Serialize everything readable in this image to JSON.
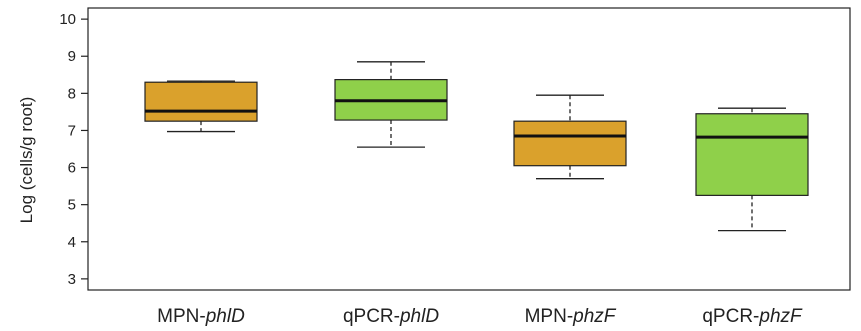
{
  "chart_data": {
    "type": "box",
    "title": "",
    "xlabel": "",
    "ylabel": "Log (cells/g root)",
    "ylim": [
      2.7,
      10.3
    ],
    "yticks": [
      "3",
      "4",
      "5",
      "6",
      "7",
      "8",
      "9",
      "10"
    ],
    "grid": false,
    "categories": [
      {
        "prefix": "MPN-",
        "gene": "phlD",
        "color": "#DAA12C"
      },
      {
        "prefix": "qPCR-",
        "gene": "phlD",
        "color": "#8FD04A"
      },
      {
        "prefix": "MPN-",
        "gene": "phzF",
        "color": "#DAA12C"
      },
      {
        "prefix": "qPCR-",
        "gene": "phzF",
        "color": "#8FD04A"
      }
    ],
    "boxes": [
      {
        "min": 6.97,
        "q1": 7.25,
        "median": 7.52,
        "q3": 8.3,
        "max": 8.33
      },
      {
        "min": 6.55,
        "q1": 7.28,
        "median": 7.8,
        "q3": 8.37,
        "max": 8.85
      },
      {
        "min": 5.7,
        "q1": 6.05,
        "median": 6.85,
        "q3": 7.25,
        "max": 7.95
      },
      {
        "min": 4.3,
        "q1": 5.25,
        "median": 6.82,
        "q3": 7.45,
        "max": 7.6
      }
    ]
  }
}
